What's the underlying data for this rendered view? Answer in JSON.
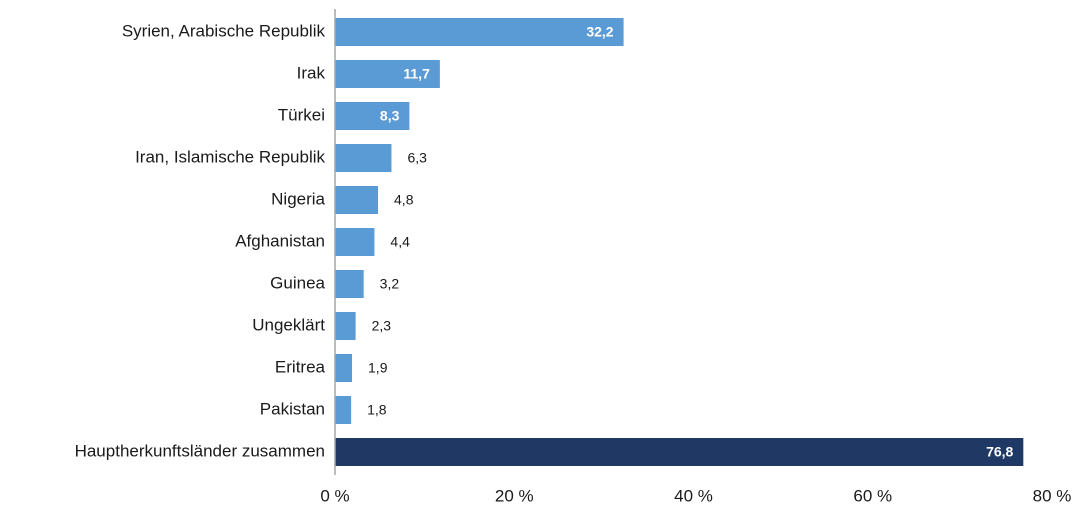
{
  "chart_data": {
    "type": "barh",
    "categories": [
      "Syrien, Arabische Republik",
      "Irak",
      "Türkei",
      "Iran, Islamische Republik",
      "Nigeria",
      "Afghanistan",
      "Guinea",
      "Ungeklärt",
      "Eritrea",
      "Pakistan",
      "Hauptherkunftsländer zusammen"
    ],
    "values": [
      32.2,
      11.7,
      8.3,
      6.3,
      4.8,
      4.4,
      3.2,
      2.3,
      1.9,
      1.8,
      76.8
    ],
    "value_labels": [
      "32,2",
      "11,7",
      "8,3",
      "6,3",
      "4,8",
      "4,4",
      "3,2",
      "2,3",
      "1,9",
      "1,8",
      "76,8"
    ],
    "colors": [
      "#5b9bd5",
      "#5b9bd5",
      "#5b9bd5",
      "#5b9bd5",
      "#5b9bd5",
      "#5b9bd5",
      "#5b9bd5",
      "#5b9bd5",
      "#5b9bd5",
      "#5b9bd5",
      "#1f3864"
    ],
    "xlim": [
      0,
      80
    ],
    "xticks": [
      {
        "value": 0,
        "label": "0 %"
      },
      {
        "value": 20,
        "label": "20 %"
      },
      {
        "value": 40,
        "label": "40 %"
      },
      {
        "value": 60,
        "label": "60 %"
      },
      {
        "value": 80,
        "label": "80 %"
      }
    ],
    "grid": false
  }
}
